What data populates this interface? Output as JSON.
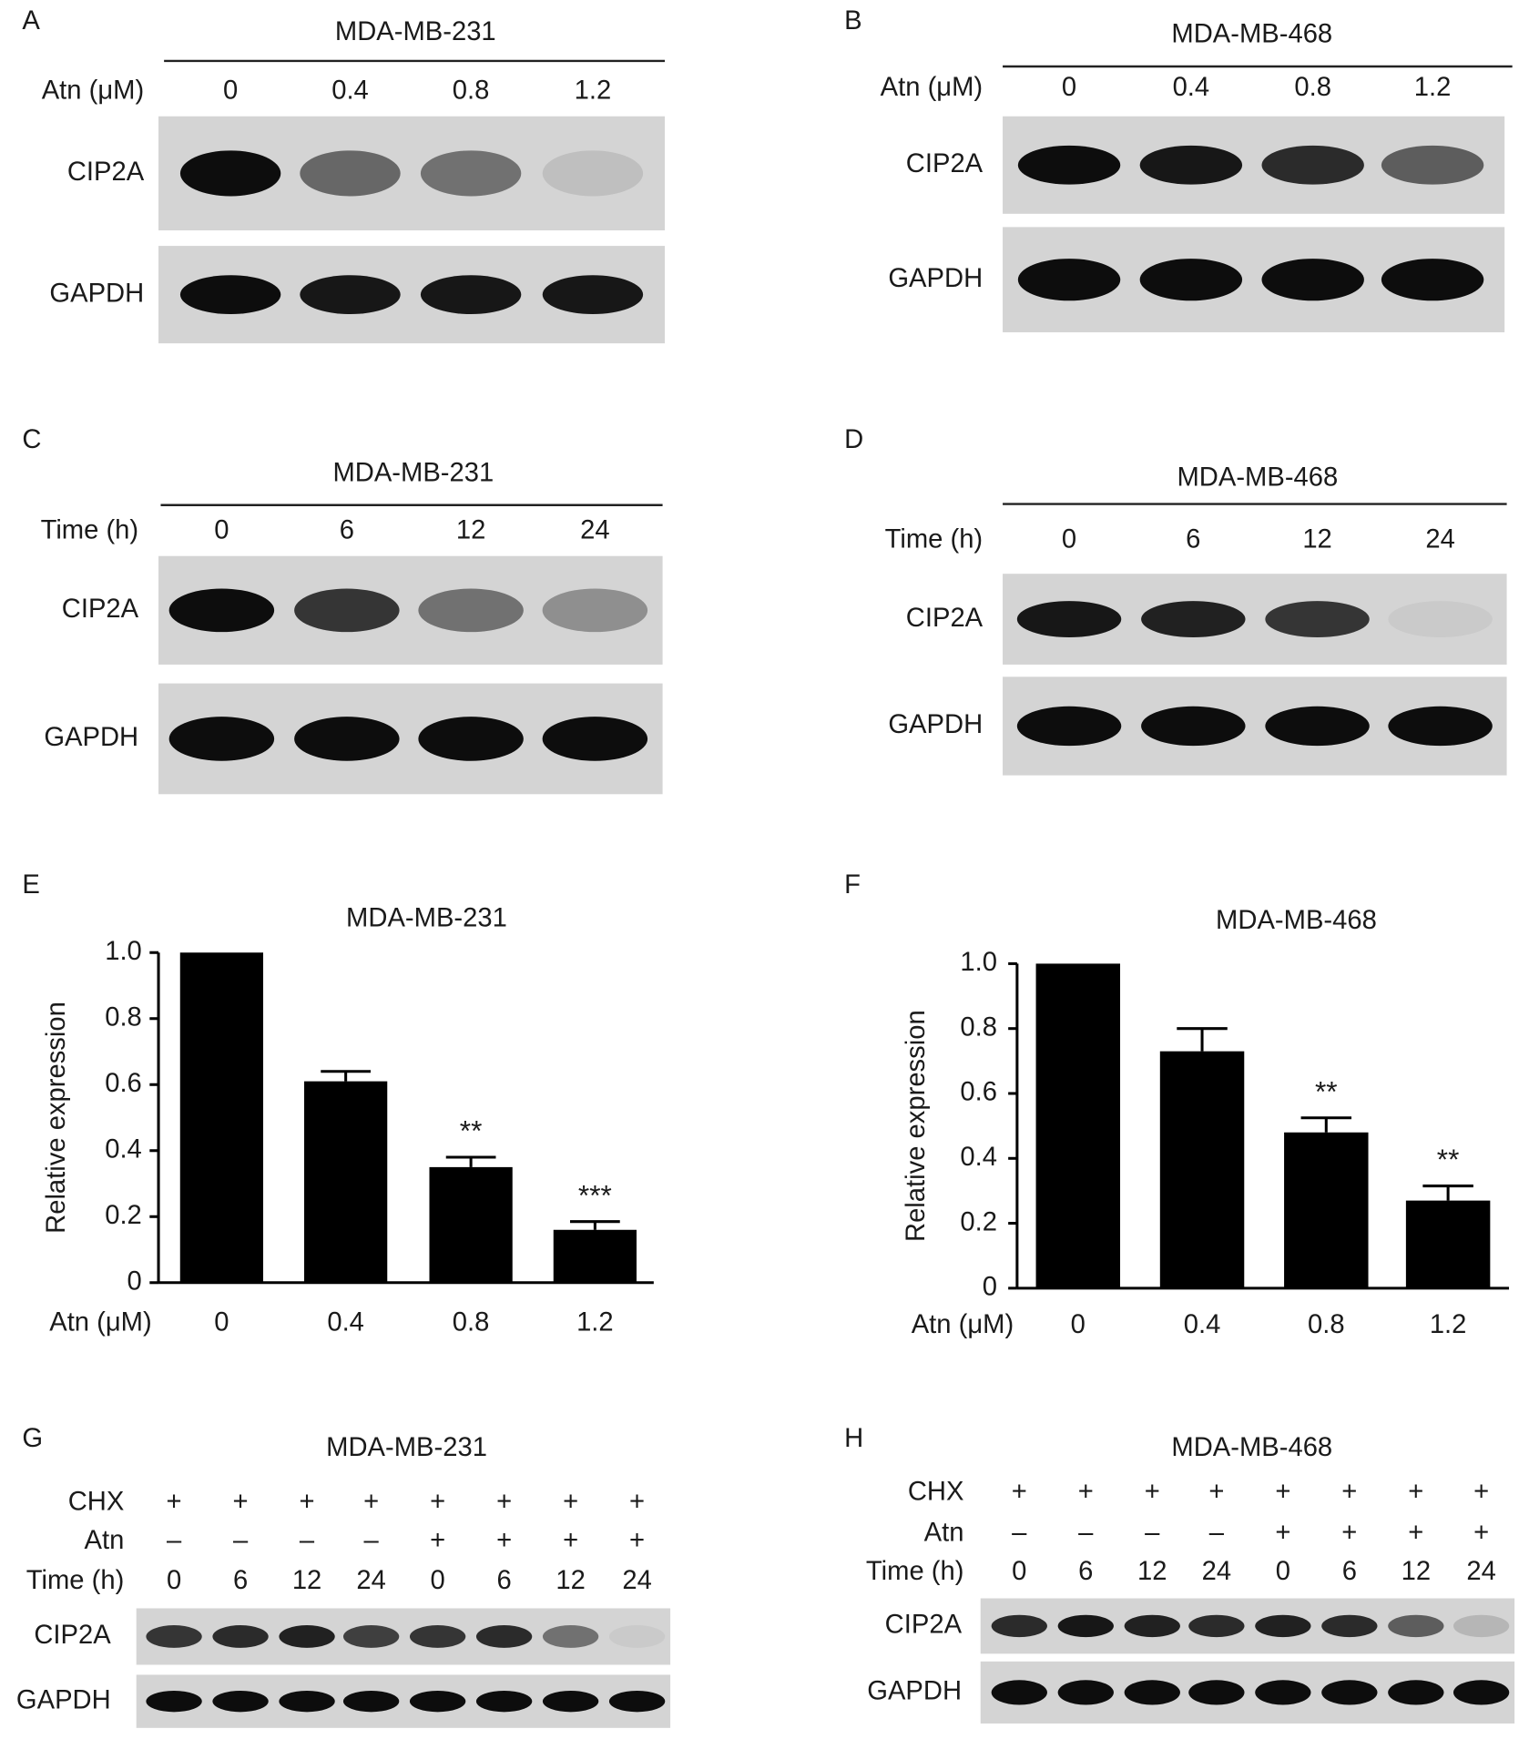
{
  "blots": [
    {
      "panel": "A",
      "title": "MDA-MB-231",
      "conditions": [
        {
          "label": "Atn (μM)",
          "values": [
            "0",
            "0.4",
            "0.8",
            "1.2"
          ]
        }
      ],
      "rows": [
        "CIP2A",
        "GAPDH"
      ]
    },
    {
      "panel": "B",
      "title": "MDA-MB-468",
      "conditions": [
        {
          "label": "Atn (μM)",
          "values": [
            "0",
            "0.4",
            "0.8",
            "1.2"
          ]
        }
      ],
      "rows": [
        "CIP2A",
        "GAPDH"
      ]
    },
    {
      "panel": "C",
      "title": "MDA-MB-231",
      "conditions": [
        {
          "label": "Time (h)",
          "values": [
            "0",
            "6",
            "12",
            "24"
          ]
        }
      ],
      "rows": [
        "CIP2A",
        "GAPDH"
      ]
    },
    {
      "panel": "D",
      "title": "MDA-MB-468",
      "conditions": [
        {
          "label": "Time (h)",
          "values": [
            "0",
            "6",
            "12",
            "24"
          ]
        }
      ],
      "rows": [
        "CIP2A",
        "GAPDH"
      ]
    },
    {
      "panel": "G",
      "title": "MDA-MB-231",
      "conditions": [
        {
          "label": "CHX",
          "values": [
            "+",
            "+",
            "+",
            "+",
            "+",
            "+",
            "+",
            "+"
          ]
        },
        {
          "label": "Atn",
          "values": [
            "–",
            "–",
            "–",
            "–",
            "+",
            "+",
            "+",
            "+"
          ]
        },
        {
          "label": "Time (h)",
          "values": [
            "0",
            "6",
            "12",
            "24",
            "0",
            "6",
            "12",
            "24"
          ]
        }
      ],
      "rows": [
        "CIP2A",
        "GAPDH"
      ]
    },
    {
      "panel": "H",
      "title": "MDA-MB-468",
      "conditions": [
        {
          "label": "CHX",
          "values": [
            "+",
            "+",
            "+",
            "+",
            "+",
            "+",
            "+",
            "+"
          ]
        },
        {
          "label": "Atn",
          "values": [
            "–",
            "–",
            "–",
            "–",
            "+",
            "+",
            "+",
            "+"
          ]
        },
        {
          "label": "Time (h)",
          "values": [
            "0",
            "6",
            "12",
            "24",
            "0",
            "6",
            "12",
            "24"
          ]
        }
      ],
      "rows": [
        "CIP2A",
        "GAPDH"
      ]
    }
  ],
  "chart_data": [
    {
      "type": "bar",
      "panel": "E",
      "title": "MDA-MB-231",
      "xlabel": "Atn (μM)",
      "ylabel": "Relative expression",
      "categories": [
        "0",
        "0.4",
        "0.8",
        "1.2"
      ],
      "values": [
        1.0,
        0.61,
        0.35,
        0.16
      ],
      "errors": [
        0,
        0.03,
        0.03,
        0.025
      ],
      "annotations": [
        null,
        null,
        "**",
        "***"
      ],
      "color": "#000000",
      "ylim": [
        0,
        1
      ],
      "yticks": [
        0,
        0.2,
        0.4,
        0.6,
        0.8,
        {
          "value": 1,
          "label": "1.0"
        }
      ]
    },
    {
      "type": "bar",
      "panel": "F",
      "title": "MDA-MB-468",
      "xlabel": "Atn (μM)",
      "ylabel": "Relative expression",
      "categories": [
        "0",
        "0.4",
        "0.8",
        "1.2"
      ],
      "values": [
        1.0,
        0.73,
        0.48,
        0.27
      ],
      "errors": [
        0,
        0.07,
        0.045,
        0.045
      ],
      "annotations": [
        null,
        null,
        "**",
        "**"
      ],
      "color": "#000000",
      "ylim": [
        0,
        1
      ],
      "yticks": [
        0,
        0.2,
        0.4,
        0.6,
        0.8,
        {
          "value": 1,
          "label": "1.0"
        }
      ]
    }
  ]
}
